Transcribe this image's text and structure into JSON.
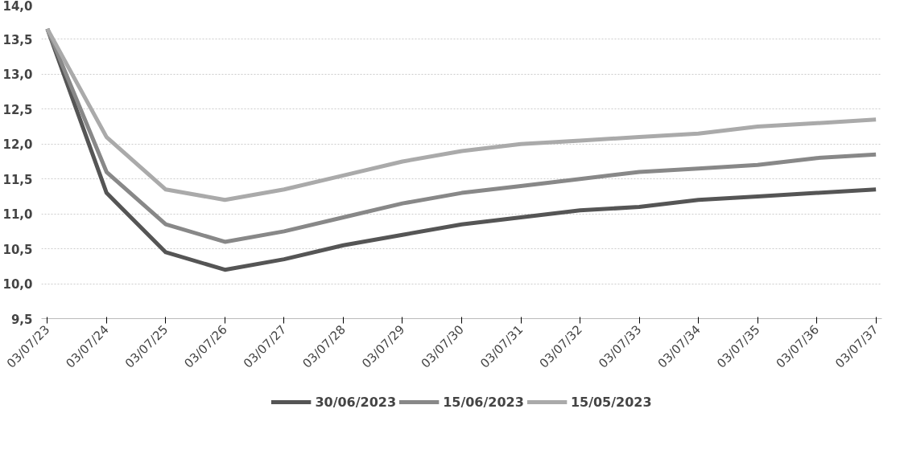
{
  "chart_data": {
    "type": "line",
    "categories": [
      "03/07/23",
      "03/07/24",
      "03/07/25",
      "03/07/26",
      "03/07/27",
      "03/07/28",
      "03/07/29",
      "03/07/30",
      "03/07/31",
      "03/07/32",
      "03/07/33",
      "03/07/34",
      "03/07/35",
      "03/07/36",
      "03/07/37"
    ],
    "series": [
      {
        "name": "30/06/2023",
        "color": "#555555",
        "values": [
          13.65,
          11.3,
          10.45,
          10.2,
          10.35,
          10.55,
          10.7,
          10.85,
          10.95,
          11.05,
          11.1,
          11.2,
          11.25,
          11.3,
          11.35
        ]
      },
      {
        "name": "15/06/2023",
        "color": "#888888",
        "values": [
          13.65,
          11.6,
          10.85,
          10.6,
          10.75,
          10.95,
          11.15,
          11.3,
          11.4,
          11.5,
          11.6,
          11.65,
          11.7,
          11.8,
          11.85
        ]
      },
      {
        "name": "15/05/2023",
        "color": "#aaaaaa",
        "values": [
          13.65,
          12.1,
          11.35,
          11.2,
          11.35,
          11.55,
          11.75,
          11.9,
          12.0,
          12.05,
          12.1,
          12.15,
          12.25,
          12.3,
          12.35
        ]
      }
    ],
    "ylim": [
      9.5,
      14.0
    ],
    "yticks": [
      {
        "value": 9.5,
        "label": "9,5"
      },
      {
        "value": 10.0,
        "label": "10,0"
      },
      {
        "value": 10.5,
        "label": "10,5"
      },
      {
        "value": 11.0,
        "label": "11,0"
      },
      {
        "value": 11.5,
        "label": "11,5"
      },
      {
        "value": 12.0,
        "label": "12,0"
      },
      {
        "value": 12.5,
        "label": "12,5"
      },
      {
        "value": 13.0,
        "label": "13,0"
      },
      {
        "value": 13.5,
        "label": "13,5"
      },
      {
        "value": 14.0,
        "label": "14,0"
      }
    ],
    "grid": "y",
    "legend": "bottom",
    "line_style": "solid"
  }
}
